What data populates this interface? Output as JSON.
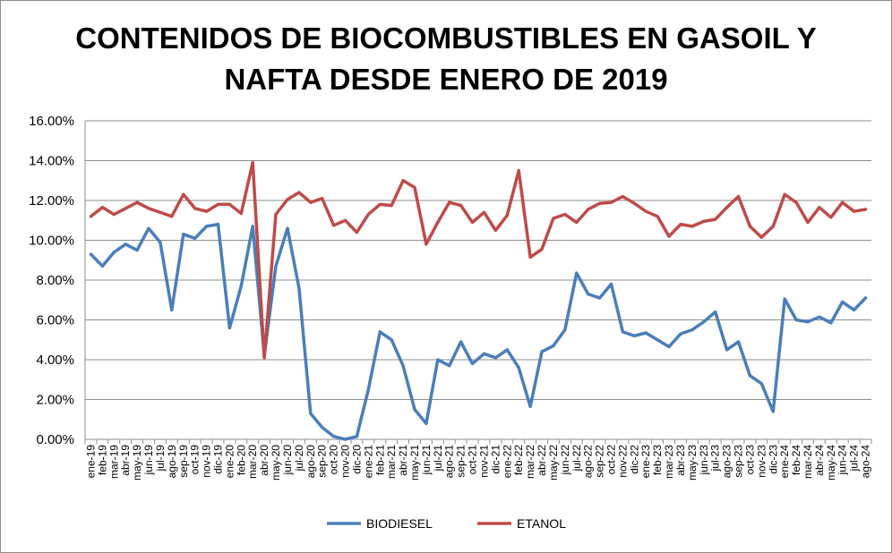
{
  "chart_data": {
    "type": "line",
    "title_line1": "CONTENIDOS DE BIOCOMBUSTIBLES EN GASOIL Y",
    "title_line2": "NAFTA DESDE ENERO DE 2019",
    "xlabel": "",
    "ylabel": "",
    "ylim": [
      0,
      16
    ],
    "y_tick_values": [
      0,
      2,
      4,
      6,
      8,
      10,
      12,
      14,
      16
    ],
    "y_tick_labels": [
      "0.00%",
      "2.00%",
      "4.00%",
      "6.00%",
      "8.00%",
      "10.00%",
      "12.00%",
      "14.00%",
      "16.00%"
    ],
    "grid": "horizontal",
    "legend_position": "bottom",
    "categories": [
      "ene-19",
      "feb-19",
      "mar-19",
      "abr-19",
      "may-19",
      "jun-19",
      "jul-19",
      "ago-19",
      "sep-19",
      "oct-19",
      "nov-19",
      "dic-19",
      "ene-20",
      "feb-20",
      "mar-20",
      "abr-20",
      "may-20",
      "jun-20",
      "jul-20",
      "ago-20",
      "sep-20",
      "oct-20",
      "nov-20",
      "dic-20",
      "ene-21",
      "feb-21",
      "mar-21",
      "abr-21",
      "may-21",
      "jun-21",
      "jul-21",
      "ago-21",
      "sep-21",
      "oct-21",
      "nov-21",
      "dic-21",
      "ene-22",
      "feb-22",
      "mar-22",
      "abr-22",
      "may-22",
      "jun-22",
      "jul-22",
      "ago-22",
      "sep-22",
      "oct-22",
      "nov-22",
      "dic-22",
      "ene-23",
      "feb-23",
      "mar-23",
      "abr-23",
      "may-23",
      "jun-23",
      "jul-23",
      "ago-23",
      "sep-23",
      "oct-23",
      "nov-23",
      "dic-23",
      "ene-24",
      "feb-24",
      "mar-24",
      "abr-24",
      "may-24",
      "jun-24",
      "jul-24",
      "ago-24"
    ],
    "series": [
      {
        "name": "BIODIESEL",
        "color": "#4a7ebb",
        "values": [
          9.3,
          8.7,
          9.4,
          9.8,
          9.5,
          10.6,
          9.9,
          6.5,
          10.3,
          10.1,
          10.7,
          10.8,
          5.6,
          7.7,
          10.7,
          4.2,
          8.7,
          10.6,
          7.6,
          1.3,
          0.6,
          0.15,
          0.0,
          0.15,
          2.5,
          5.4,
          5.0,
          3.7,
          1.5,
          0.8,
          4.0,
          3.7,
          4.9,
          3.8,
          4.3,
          4.1,
          4.5,
          3.6,
          1.65,
          4.4,
          4.7,
          5.5,
          8.35,
          7.3,
          7.1,
          7.8,
          5.4,
          5.2,
          5.35,
          5.0,
          4.65,
          5.3,
          5.5,
          5.9,
          6.4,
          4.5,
          4.9,
          3.2,
          2.8,
          1.4,
          7.05,
          6.0,
          5.9,
          6.15,
          5.85,
          6.9,
          6.5,
          7.1
        ]
      },
      {
        "name": "ETANOL",
        "color": "#be4b48",
        "values": [
          11.2,
          11.65,
          11.3,
          11.6,
          11.9,
          11.6,
          11.4,
          11.2,
          12.3,
          11.6,
          11.45,
          11.8,
          11.8,
          11.35,
          13.9,
          4.1,
          11.3,
          12.05,
          12.4,
          11.9,
          12.1,
          10.75,
          11.0,
          10.4,
          11.3,
          11.8,
          11.75,
          13.0,
          12.65,
          9.8,
          10.9,
          11.9,
          11.75,
          10.9,
          11.4,
          10.5,
          11.25,
          13.5,
          9.15,
          9.55,
          11.1,
          11.3,
          10.9,
          11.55,
          11.85,
          11.9,
          12.2,
          11.85,
          11.45,
          11.2,
          10.2,
          10.8,
          10.7,
          10.95,
          11.05,
          11.65,
          12.2,
          10.7,
          10.15,
          10.7,
          12.3,
          11.9,
          10.9,
          11.65,
          11.15,
          11.9,
          11.45,
          11.55
        ]
      }
    ]
  }
}
